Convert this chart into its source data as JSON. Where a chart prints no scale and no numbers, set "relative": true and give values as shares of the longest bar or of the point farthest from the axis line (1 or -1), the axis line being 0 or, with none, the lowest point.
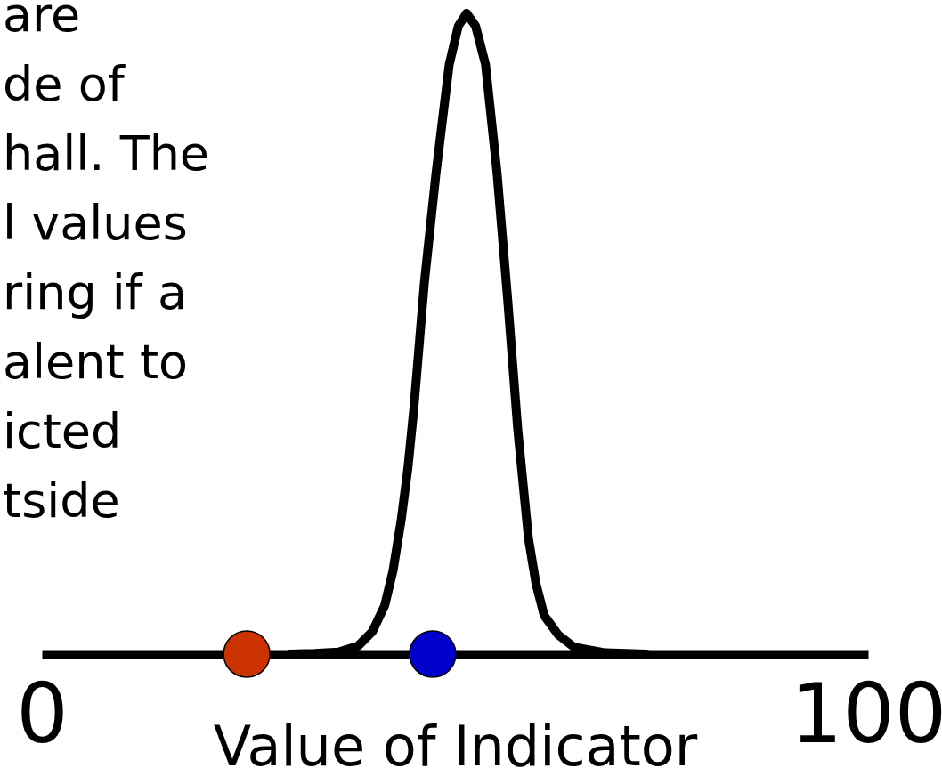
{
  "chart_data": {
    "type": "line",
    "relative": true,
    "xlabel": "Value of Indicator",
    "xlim": [
      0,
      100
    ],
    "xticks": [
      0,
      100
    ],
    "annotations": [
      "are",
      "de of",
      "hall. The",
      "l values",
      "ring if a",
      "alent to",
      "icted",
      "tside"
    ],
    "series": [
      {
        "color": "#000000",
        "line_style": "solid",
        "x": [
          30.0,
          33.0,
          35.9,
          38.3,
          40.0,
          41.5,
          42.5,
          43.5,
          44.3,
          45.0,
          46.3,
          47.7,
          49.3,
          50.4,
          51.4,
          52.5,
          53.7,
          55.1,
          56.4,
          57.6,
          58.9,
          59.8,
          60.8,
          62.5,
          64.4,
          68.2,
          73.2
        ],
        "values": [
          0,
          0.001,
          0.003,
          0.013,
          0.035,
          0.076,
          0.13,
          0.21,
          0.29,
          0.38,
          0.58,
          0.75,
          0.92,
          0.98,
          1,
          0.98,
          0.92,
          0.75,
          0.55,
          0.35,
          0.18,
          0.11,
          0.06,
          0.03,
          0.011,
          0.002,
          0
        ]
      },
      {
        "type": "scatter",
        "color": "#cc3300",
        "marker": "circle",
        "x": [
          24.8
        ],
        "values": [
          0
        ]
      },
      {
        "type": "scatter",
        "color": "#0000cc",
        "marker": "circle",
        "x": [
          47.3
        ],
        "values": [
          0
        ]
      }
    ]
  }
}
